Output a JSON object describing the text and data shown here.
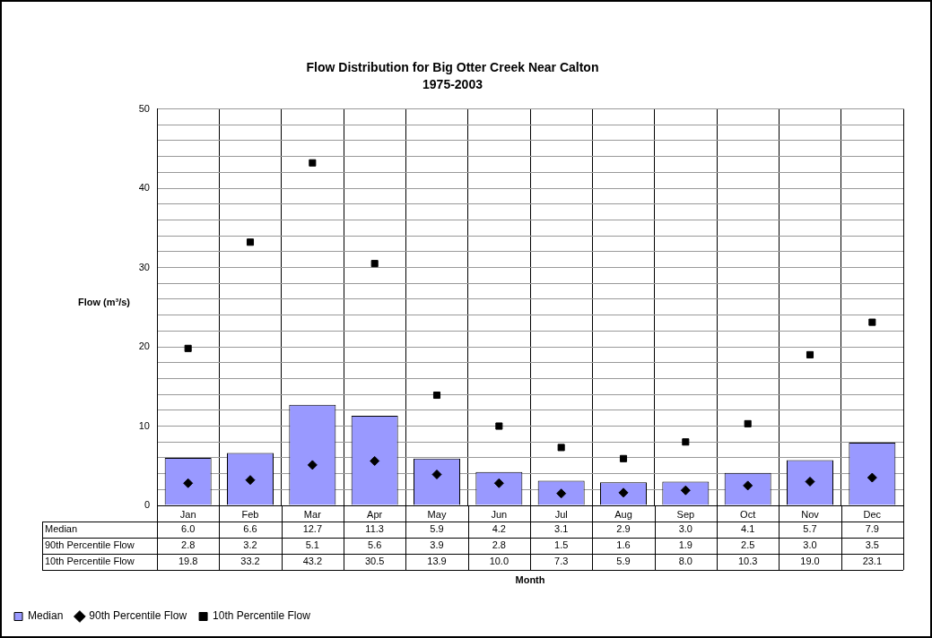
{
  "chart_data": {
    "type": "bar",
    "title": "Flow Distribution for Big Otter Creek Near Calton",
    "subtitle": "1975-2003",
    "annotations": [
      "Month"
    ],
    "ylabel": "Flow (m³/s)",
    "categories": [
      "Jan",
      "Feb",
      "Mar",
      "Apr",
      "May",
      "Jun",
      "Jul",
      "Aug",
      "Sep",
      "Oct",
      "Nov",
      "Dec"
    ],
    "series": [
      {
        "name": "Median",
        "color": "#9999ff",
        "values": [
          6.0,
          6.6,
          12.7,
          11.3,
          5.9,
          4.2,
          3.1,
          2.9,
          3.0,
          4.1,
          5.7,
          7.9
        ],
        "value_labels": [
          "6.0",
          "6.6",
          "12.7",
          "11.3",
          "5.9",
          "4.2",
          "3.1",
          "2.9",
          "3.0",
          "4.1",
          "5.7",
          "7.9"
        ]
      },
      {
        "name": "90th Percentile Flow",
        "type": "scatter",
        "marker": "diamond",
        "color": "#000000",
        "x": [
          "Jan",
          "Feb",
          "Mar",
          "Apr",
          "May",
          "Jun",
          "Jul",
          "Aug",
          "Sep",
          "Oct",
          "Nov",
          "Dec"
        ],
        "values": [
          2.8,
          3.2,
          5.1,
          5.6,
          3.9,
          2.8,
          1.5,
          1.6,
          1.9,
          2.5,
          3.0,
          3.5
        ],
        "value_labels": [
          "2.8",
          "3.2",
          "5.1",
          "5.6",
          "3.9",
          "2.8",
          "1.5",
          "1.6",
          "1.9",
          "2.5",
          "3.0",
          "3.5"
        ]
      },
      {
        "name": "10th Percentile Flow",
        "type": "scatter",
        "marker": "square",
        "color": "#000000",
        "x": [
          "Jan",
          "Feb",
          "Mar",
          "Apr",
          "May",
          "Jun",
          "Jul",
          "Aug",
          "Sep",
          "Oct",
          "Nov",
          "Dec"
        ],
        "values": [
          19.8,
          33.2,
          43.2,
          30.5,
          13.9,
          10.0,
          7.3,
          5.9,
          8.0,
          10.3,
          19.0,
          23.1
        ],
        "value_labels": [
          "19.8",
          "33.2",
          "43.2",
          "30.5",
          "13.9",
          "10.0",
          "7.3",
          "5.9",
          "8.0",
          "10.3",
          "19.0",
          "23.1"
        ]
      }
    ],
    "ylim": [
      0,
      50
    ],
    "yticks": [
      0,
      {
        "value": 2,
        "label": null
      },
      {
        "value": 4,
        "label": null
      },
      {
        "value": 6,
        "label": null
      },
      {
        "value": 8,
        "label": null
      },
      10,
      {
        "value": 12,
        "label": null
      },
      {
        "value": 14,
        "label": null
      },
      {
        "value": 16,
        "label": null
      },
      {
        "value": 18,
        "label": null
      },
      20,
      {
        "value": 22,
        "label": null
      },
      {
        "value": 24,
        "label": null
      },
      {
        "value": 26,
        "label": null
      },
      {
        "value": 28,
        "label": null
      },
      30,
      {
        "value": 32,
        "label": null
      },
      {
        "value": 34,
        "label": null
      },
      {
        "value": 36,
        "label": null
      },
      {
        "value": 38,
        "label": null
      },
      40,
      {
        "value": 42,
        "label": null
      },
      {
        "value": 44,
        "label": null
      },
      {
        "value": 46,
        "label": null
      },
      {
        "value": 48,
        "label": null
      },
      50
    ],
    "grid": true,
    "legend": "bottom left"
  }
}
